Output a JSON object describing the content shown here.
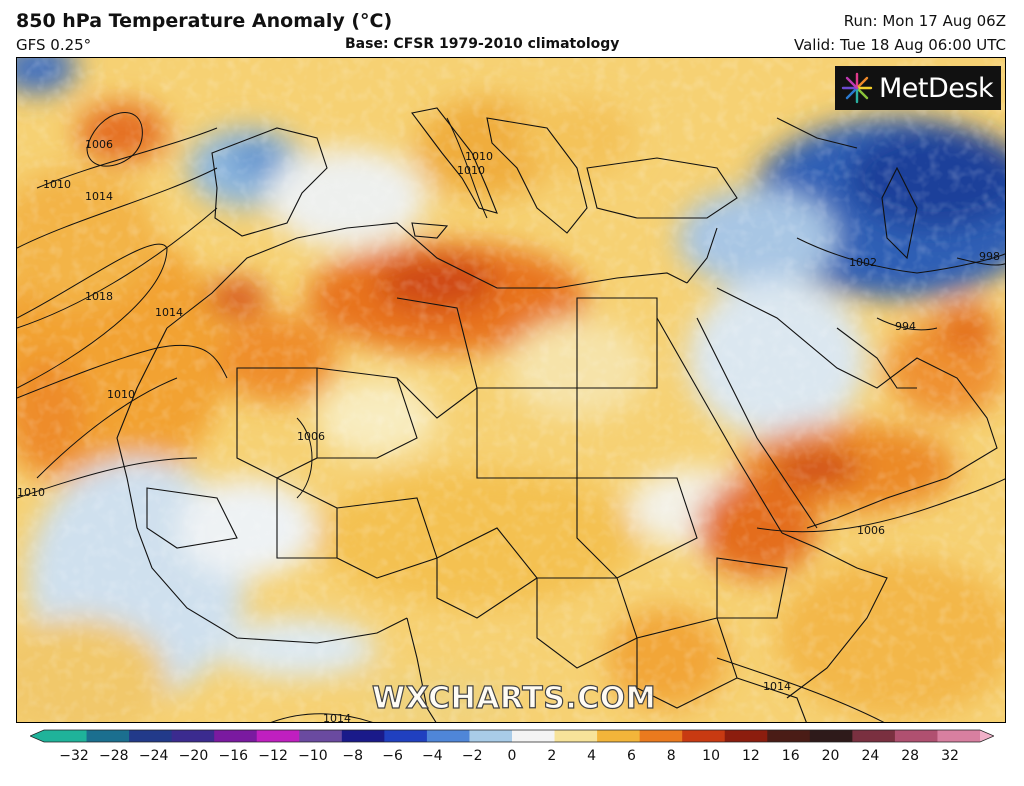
{
  "header": {
    "title": "850 hPa Temperature Anomaly (°C)",
    "model": "GFS 0.25°",
    "base": "Base: CFSR 1979-2010 climatology",
    "run": "Run: Mon 17 Aug 06Z",
    "valid": "Valid: Tue 18 Aug 06:00 UTC"
  },
  "logo": {
    "text": "MetDesk",
    "icon": "starburst-icon"
  },
  "watermark": "WXCHARTS.COM",
  "isobar_labels": [
    "1006",
    "1010",
    "1014",
    "1018",
    "1014",
    "1010",
    "1006",
    "1010",
    "1010",
    "1010",
    "1002",
    "998",
    "994",
    "1006",
    "1014",
    "1014"
  ],
  "colorbar": {
    "ticks": [
      "−32",
      "−28",
      "−24",
      "−20",
      "−16",
      "−12",
      "−10",
      "−8",
      "−6",
      "−4",
      "−2",
      "0",
      "2",
      "4",
      "6",
      "8",
      "10",
      "12",
      "16",
      "20",
      "24",
      "28",
      "32"
    ],
    "colors": [
      "#1fb39a",
      "#1b6f8f",
      "#223a8a",
      "#3b2b8f",
      "#7a1aa0",
      "#c01fc0",
      "#6a4aa0",
      "#1a1a8a",
      "#2040c0",
      "#4f86d8",
      "#a9cce8",
      "#f4f4f4",
      "#f7e39a",
      "#f3b53a",
      "#ea7a1e",
      "#c83a12",
      "#8c1d0e",
      "#4a1c16",
      "#2e1a1a",
      "#7a3040",
      "#b05070",
      "#d87fa0",
      "#f0b0c8"
    ]
  }
}
